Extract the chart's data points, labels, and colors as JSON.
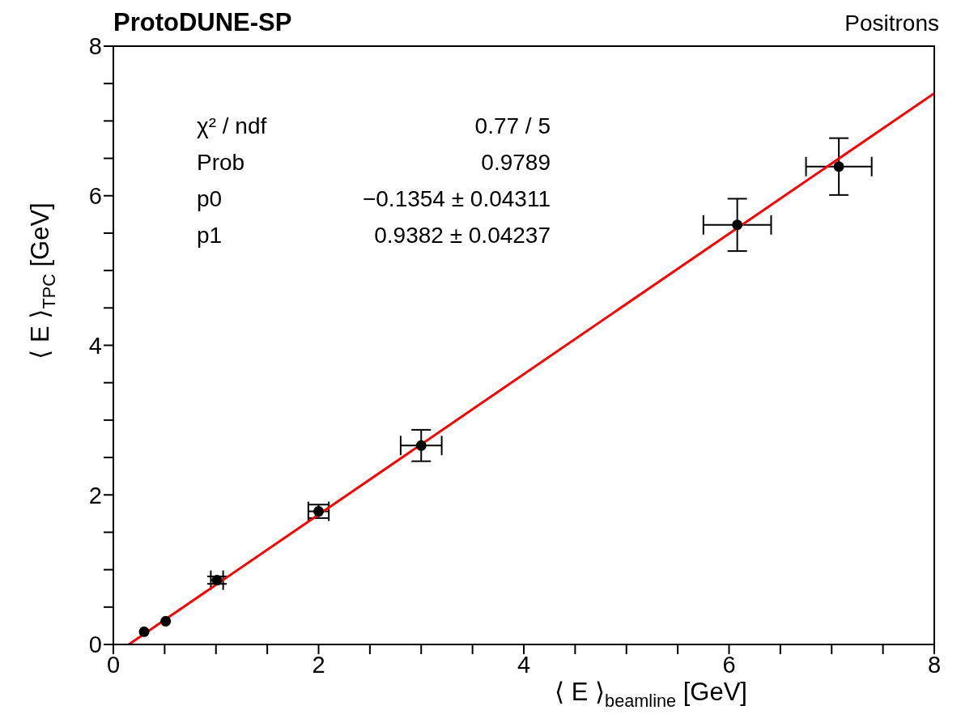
{
  "chart_data": {
    "type": "scatter",
    "title": "ProtoDUNE-SP",
    "subtitle": "Positrons",
    "xlabel": "⟨ E ⟩$_{beamline}$ [GeV]",
    "ylabel": "⟨ E ⟩$_{TPC}$ [GeV]",
    "annotations": [
      "χ² / ndf",
      "0.77 / 5",
      "Prob",
      "0.9789",
      "p0",
      "−0.1354 ± 0.04311",
      "p1",
      "0.9382 ± 0.04237"
    ],
    "xlim": [
      0,
      8
    ],
    "ylim": [
      0,
      8
    ],
    "xticks": [
      0,
      {
        "value": 0.5,
        "label": null
      },
      {
        "value": 1,
        "label": null
      },
      {
        "value": 1.5,
        "label": null
      },
      2,
      {
        "value": 2.5,
        "label": null
      },
      {
        "value": 3,
        "label": null
      },
      {
        "value": 3.5,
        "label": null
      },
      4,
      {
        "value": 4.5,
        "label": null
      },
      {
        "value": 5,
        "label": null
      },
      {
        "value": 5.5,
        "label": null
      },
      6,
      {
        "value": 6.5,
        "label": null
      },
      {
        "value": 7,
        "label": null
      },
      {
        "value": 7.5,
        "label": null
      },
      8
    ],
    "yticks": [
      0,
      {
        "value": 0.5,
        "label": null
      },
      {
        "value": 1,
        "label": null
      },
      {
        "value": 1.5,
        "label": null
      },
      2,
      {
        "value": 2.5,
        "label": null
      },
      {
        "value": 3,
        "label": null
      },
      {
        "value": 3.5,
        "label": null
      },
      4,
      {
        "value": 4.5,
        "label": null
      },
      {
        "value": 5,
        "label": null
      },
      {
        "value": 5.5,
        "label": null
      },
      6,
      {
        "value": 6.5,
        "label": null
      },
      {
        "value": 7,
        "label": null
      },
      {
        "value": 7.5,
        "label": null
      },
      8
    ],
    "series": [
      {
        "marker": "circle",
        "color": "#000000",
        "x": [
          0.3,
          0.51,
          1.01,
          2.0,
          3.0,
          6.08,
          7.07
        ],
        "values": [
          0.17,
          0.31,
          0.86,
          1.78,
          2.66,
          5.61,
          6.39
        ],
        "errors": [
          null,
          null,
          0.05,
          0.09,
          0.21,
          0.35,
          0.38
        ],
        "xerrors": [
          null,
          null,
          0.06,
          0.1,
          0.2,
          0.33,
          0.32
        ]
      },
      {
        "type": "line",
        "color": "#ff0000",
        "x": [
          0.15,
          8
        ],
        "values": [
          0,
          7.37
        ]
      }
    ]
  }
}
